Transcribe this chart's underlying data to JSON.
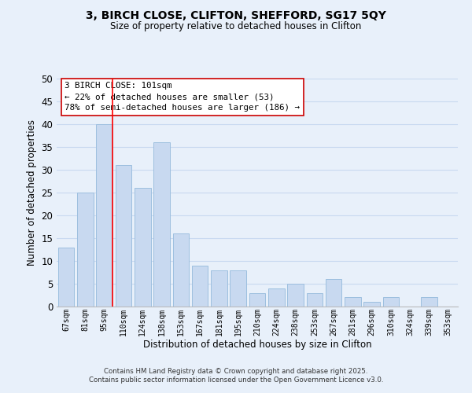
{
  "title": "3, BIRCH CLOSE, CLIFTON, SHEFFORD, SG17 5QY",
  "subtitle": "Size of property relative to detached houses in Clifton",
  "xlabel": "Distribution of detached houses by size in Clifton",
  "ylabel": "Number of detached properties",
  "categories": [
    "67sqm",
    "81sqm",
    "95sqm",
    "110sqm",
    "124sqm",
    "138sqm",
    "153sqm",
    "167sqm",
    "181sqm",
    "195sqm",
    "210sqm",
    "224sqm",
    "238sqm",
    "253sqm",
    "267sqm",
    "281sqm",
    "296sqm",
    "310sqm",
    "324sqm",
    "339sqm",
    "353sqm"
  ],
  "values": [
    13,
    25,
    40,
    31,
    26,
    36,
    16,
    9,
    8,
    8,
    3,
    4,
    5,
    3,
    6,
    2,
    1,
    2,
    0,
    2,
    0
  ],
  "bar_color": "#c8d9f0",
  "bar_edge_color": "#9dbfdf",
  "vline_color": "#ff0000",
  "vline_x_index": 2,
  "annotation_title": "3 BIRCH CLOSE: 101sqm",
  "annotation_line1": "← 22% of detached houses are smaller (53)",
  "annotation_line2": "78% of semi-detached houses are larger (186) →",
  "annotation_box_color": "#ffffff",
  "annotation_box_edge": "#cc0000",
  "ylim": [
    0,
    50
  ],
  "yticks": [
    0,
    5,
    10,
    15,
    20,
    25,
    30,
    35,
    40,
    45,
    50
  ],
  "grid_color": "#c8d9f0",
  "background_color": "#e8f0fa",
  "footer_line1": "Contains HM Land Registry data © Crown copyright and database right 2025.",
  "footer_line2": "Contains public sector information licensed under the Open Government Licence v3.0."
}
